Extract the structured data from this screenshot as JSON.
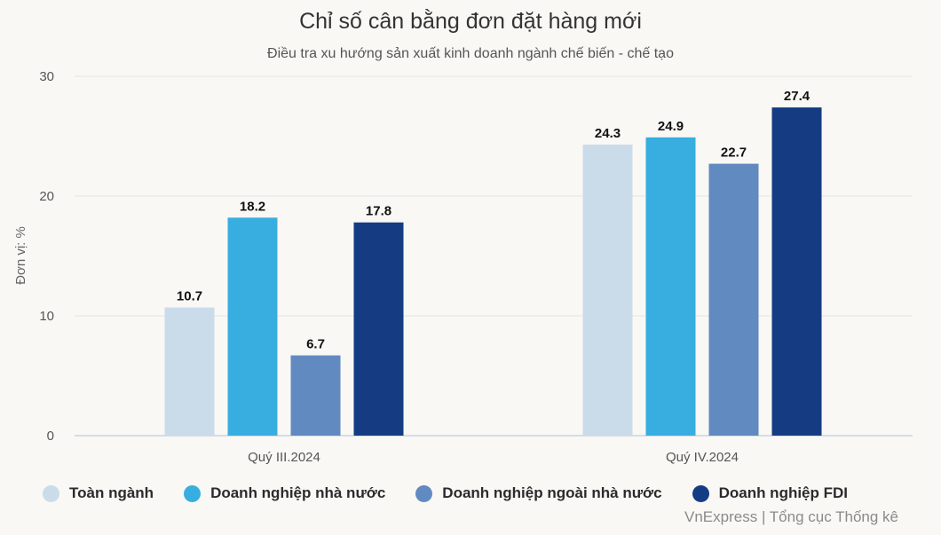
{
  "chart_data": {
    "type": "bar",
    "title": "Chỉ số cân bằng đơn đặt hàng mới",
    "subtitle": "Điều tra xu hướng sản xuất kinh doanh ngành chế biến - chế tạo",
    "ylabel": "Đơn vị: %",
    "xlabel": "",
    "ylim": [
      0,
      30
    ],
    "yticks": [
      0,
      10,
      20,
      30
    ],
    "categories": [
      "Quý III.2024",
      "Quý IV.2024"
    ],
    "series": [
      {
        "name": "Toàn ngành",
        "color": "#cadcea",
        "values": [
          10.7,
          24.3
        ],
        "labels": [
          "10.7",
          "24.3"
        ]
      },
      {
        "name": "Doanh nghiệp nhà nước",
        "color": "#38aee0",
        "values": [
          18.2,
          24.9
        ],
        "labels": [
          "18.2",
          "24.9"
        ]
      },
      {
        "name": "Doanh nghiệp ngoài nhà nước",
        "color": "#618ac1",
        "values": [
          6.7,
          22.7
        ],
        "labels": [
          "6.7",
          "22.7"
        ]
      },
      {
        "name": "Doanh nghiệp FDI",
        "color": "#153c82",
        "values": [
          17.8,
          27.4
        ],
        "labels": [
          "17.8",
          "27.4"
        ]
      }
    ],
    "grid": true,
    "legend_position": "bottom-left"
  },
  "source": "VnExpress | Tổng cục Thống kê"
}
